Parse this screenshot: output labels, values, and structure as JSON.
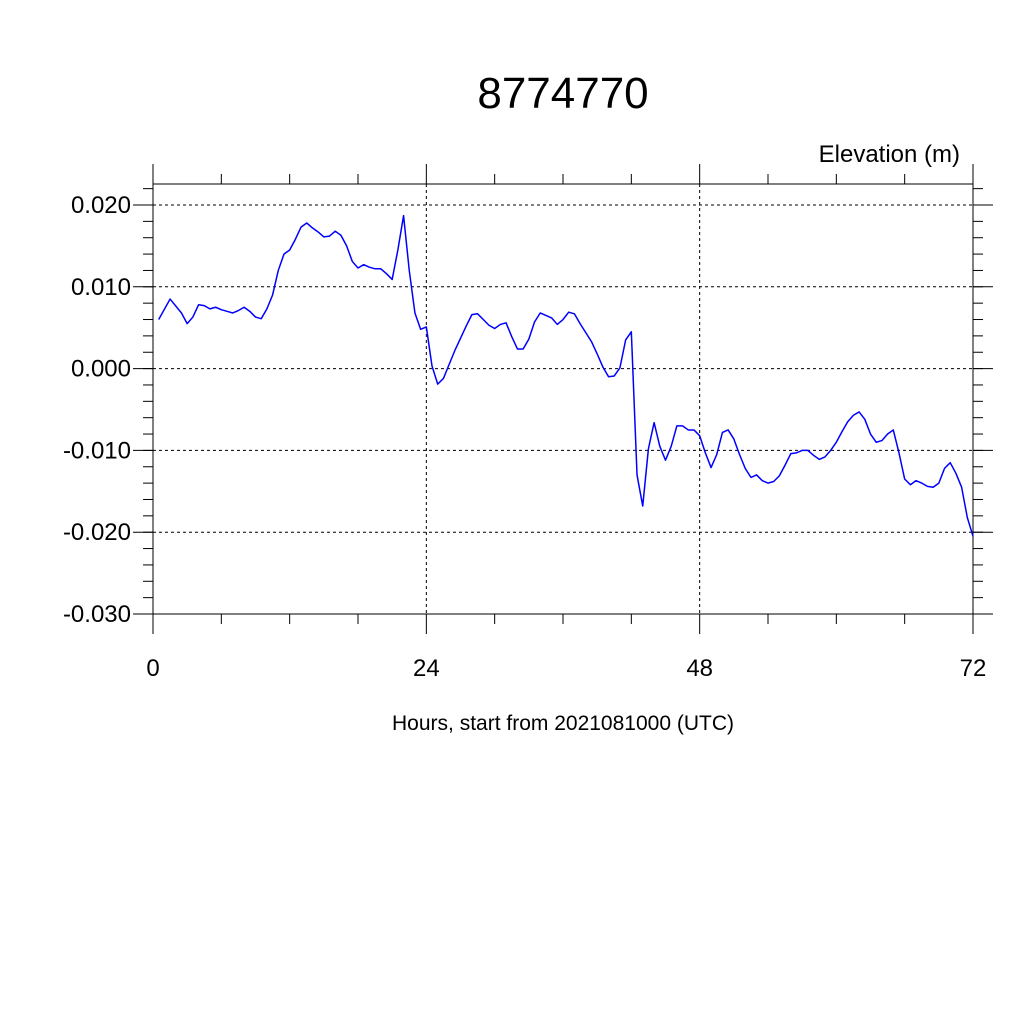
{
  "chart_data": {
    "type": "line",
    "title": "8774770",
    "ylabel": "Elevation (m)",
    "xlabel": "Hours, start from 2021081000 (UTC)",
    "xlim": [
      0,
      72
    ],
    "ylim": [
      -0.03,
      0.02
    ],
    "x_ticks": [
      0,
      24,
      48,
      72
    ],
    "x_tick_labels": [
      "0",
      "24",
      "48",
      "72"
    ],
    "y_ticks": [
      0.02,
      0.01,
      0.0,
      -0.01,
      -0.02,
      -0.03
    ],
    "y_tick_labels": [
      "0.020",
      "0.010",
      "0.000",
      "-0.010",
      "-0.020",
      "-0.030"
    ],
    "grid": true,
    "line_color": "#0000ff",
    "series": [
      {
        "x": [
          0.5,
          1.5,
          2.5,
          3,
          3.5,
          4,
          4.5,
          5,
          5.5,
          6,
          6.5,
          7,
          7.5,
          8,
          8.5,
          9,
          9.5,
          10,
          10.5,
          11,
          11.5,
          12,
          12.5,
          13,
          13.5,
          14,
          14.5,
          15,
          15.5,
          16,
          16.5,
          17,
          17.5,
          18,
          18.5,
          19,
          19.5,
          20,
          20.5,
          21,
          21.5,
          22,
          22.5,
          23,
          23.5,
          24,
          24.5,
          25,
          25.5,
          26,
          26.5,
          27,
          27.5,
          28,
          28.5,
          29,
          29.5,
          30,
          30.5,
          31,
          31.5,
          32,
          32.5,
          33,
          33.5,
          34,
          34.5,
          35,
          35.5,
          36,
          36.5,
          37,
          37.5,
          38,
          38.5,
          39,
          39.5,
          40,
          40.5,
          41,
          41.5,
          42,
          42.5,
          43,
          43.5,
          44,
          44.5,
          45,
          45.5,
          46,
          46.5,
          47,
          47.5,
          48,
          48.5,
          49,
          49.5,
          50,
          50.5,
          51,
          51.5,
          52,
          52.5,
          53,
          53.5,
          54,
          54.5,
          55,
          55.5,
          56,
          56.5,
          57,
          57.5,
          58,
          58.5,
          59,
          59.5,
          60,
          60.5,
          61,
          61.5,
          62,
          62.5,
          63,
          63.5,
          64,
          64.5,
          65,
          65.5,
          66,
          66.5,
          67,
          67.5,
          68,
          68.5,
          69,
          69.5,
          70,
          70.5,
          71,
          71.5,
          72
        ],
        "y": [
          0.006,
          0.0085,
          0.0068,
          0.0055,
          0.0063,
          0.0078,
          0.0077,
          0.0073,
          0.0075,
          0.0072,
          0.007,
          0.0068,
          0.0071,
          0.0075,
          0.007,
          0.0063,
          0.0061,
          0.0073,
          0.009,
          0.012,
          0.014,
          0.0145,
          0.0158,
          0.0173,
          0.0178,
          0.0172,
          0.0167,
          0.0161,
          0.0162,
          0.0168,
          0.0163,
          0.015,
          0.0131,
          0.0123,
          0.0127,
          0.0124,
          0.0122,
          0.0122,
          0.0116,
          0.0109,
          0.0145,
          0.0187,
          0.012,
          0.0068,
          0.0048,
          0.0051,
          0.0003,
          -0.0019,
          -0.0012,
          0.0005,
          0.0022,
          0.0037,
          0.0052,
          0.0066,
          0.0067,
          0.006,
          0.0053,
          0.0049,
          0.0054,
          0.0056,
          0.0039,
          0.0024,
          0.0024,
          0.0036,
          0.0057,
          0.0068,
          0.0065,
          0.0062,
          0.0054,
          0.006,
          0.0069,
          0.0067,
          0.0055,
          0.0044,
          0.0033,
          0.0018,
          0.0002,
          -0.001,
          -0.0009,
          0.0001,
          0.0035,
          0.0045,
          -0.013,
          -0.0168,
          -0.0098,
          -0.0066,
          -0.0095,
          -0.0112,
          -0.0095,
          -0.007,
          -0.007,
          -0.0075,
          -0.0075,
          -0.0082,
          -0.0103,
          -0.0121,
          -0.0105,
          -0.0078,
          -0.0075,
          -0.0086,
          -0.0105,
          -0.0122,
          -0.0133,
          -0.013,
          -0.0137,
          -0.014,
          -0.0138,
          -0.0131,
          -0.0118,
          -0.0104,
          -0.0103,
          -0.01,
          -0.01,
          -0.0106,
          -0.0111,
          -0.0108,
          -0.01,
          -0.009,
          -0.0077,
          -0.0065,
          -0.0057,
          -0.0053,
          -0.0062,
          -0.008,
          -0.009,
          -0.0088,
          -0.008,
          -0.0075,
          -0.0103,
          -0.0135,
          -0.0142,
          -0.0137,
          -0.014,
          -0.0144,
          -0.0145,
          -0.014,
          -0.0122,
          -0.0115,
          -0.0128,
          -0.0145,
          -0.0182,
          -0.0205
        ]
      }
    ]
  }
}
